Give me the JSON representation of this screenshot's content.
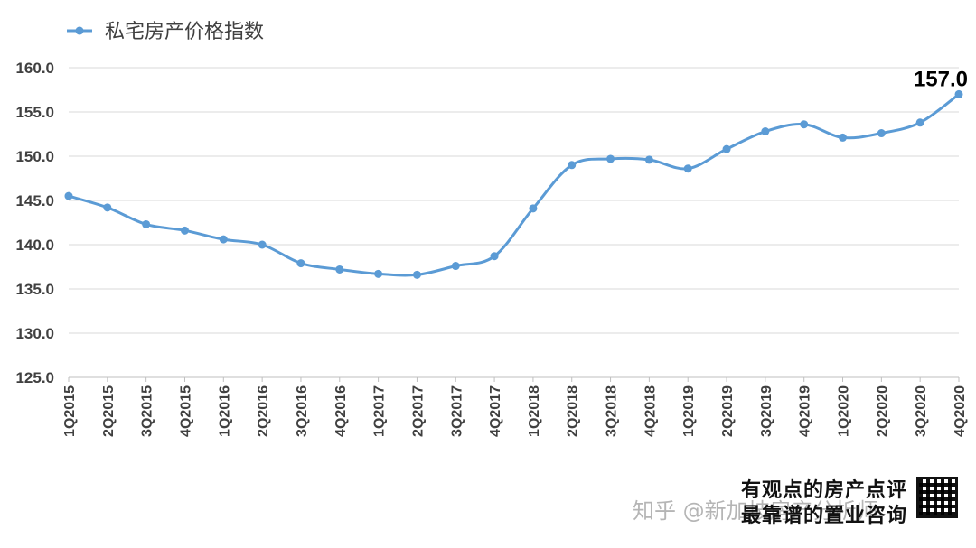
{
  "legend": {
    "label": "私宅房产价格指数"
  },
  "colors": {
    "series": "#5b9bd5",
    "grid": "#d9d9d9",
    "axis": "#bfbfbf",
    "text": "#404040"
  },
  "chart_data": {
    "type": "line",
    "ylim": [
      125,
      160
    ],
    "yticks": [
      "125.0",
      "130.0",
      "135.0",
      "140.0",
      "145.0",
      "150.0",
      "155.0",
      "160.0"
    ],
    "grid": "horizontal",
    "legend_position": "top-left",
    "categories": [
      "1Q2015",
      "2Q2015",
      "3Q2015",
      "4Q2015",
      "1Q2016",
      "2Q2016",
      "3Q2016",
      "4Q2016",
      "1Q2017",
      "2Q2017",
      "3Q2017",
      "4Q2017",
      "1Q2018",
      "2Q2018",
      "3Q2018",
      "4Q2018",
      "1Q2019",
      "2Q2019",
      "3Q2019",
      "4Q2019",
      "1Q2020",
      "2Q2020",
      "3Q2020",
      "4Q2020"
    ],
    "series": [
      {
        "name": "私宅房产价格指数",
        "values": [
          145.5,
          144.2,
          142.3,
          141.6,
          140.6,
          140.0,
          137.9,
          137.2,
          136.7,
          136.6,
          137.6,
          138.7,
          144.1,
          149.0,
          149.7,
          149.6,
          148.6,
          150.8,
          152.8,
          153.6,
          152.1,
          152.6,
          153.8,
          157.0
        ]
      }
    ],
    "data_label": {
      "text": "157.0"
    }
  },
  "footer": {
    "slogan_line1": "有观点的房产点评",
    "slogan_line2": "最靠谱的置业咨询",
    "watermark": "知乎 @新加坡房产分析师"
  }
}
